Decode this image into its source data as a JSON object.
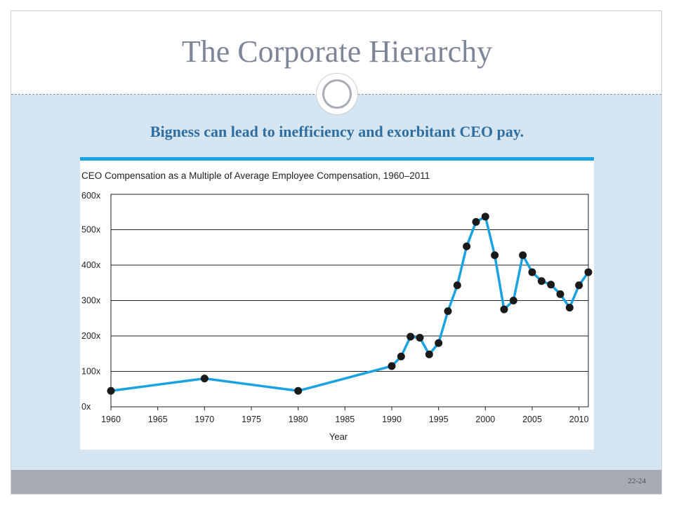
{
  "slide": {
    "title": "The Corporate Hierarchy",
    "subtitle": "Bigness can lead to inefficiency and exorbitant CEO pay.",
    "page_number": "22-24"
  },
  "colors": {
    "title": "#7f8599",
    "subtitle": "#2f6ea0",
    "content_bg": "#d5e5f1",
    "footer_bg": "#a9abb4",
    "series_line": "#1aa3e0",
    "marker": "#1a1a1a",
    "top_rule": "#1aa3e0"
  },
  "chart_data": {
    "type": "line",
    "title": "CEO Compensation as a Multiple of Average Employee Compensation, 1960–2011",
    "xlabel": "Year",
    "ylabel": "",
    "xlim": [
      1960,
      2011
    ],
    "ylim": [
      0,
      600
    ],
    "x_ticks": [
      1960,
      1965,
      1970,
      1975,
      1980,
      1985,
      1990,
      1995,
      2000,
      2005,
      2010
    ],
    "y_ticks": [
      {
        "value": 0,
        "label": "0x"
      },
      {
        "value": 100,
        "label": "100x"
      },
      {
        "value": 200,
        "label": "200x"
      },
      {
        "value": 300,
        "label": "300x"
      },
      {
        "value": 400,
        "label": "400x"
      },
      {
        "value": 500,
        "label": "500x"
      },
      {
        "value": 600,
        "label": "600x"
      }
    ],
    "grid": "horizontal",
    "series": [
      {
        "markers": true,
        "points": [
          {
            "x": 1960,
            "y": 45
          },
          {
            "x": 1970,
            "y": 80
          },
          {
            "x": 1980,
            "y": 45
          },
          {
            "x": 1990,
            "y": 115
          },
          {
            "x": 1991,
            "y": 142
          },
          {
            "x": 1992,
            "y": 198
          },
          {
            "x": 1993,
            "y": 195
          },
          {
            "x": 1994,
            "y": 148
          },
          {
            "x": 1995,
            "y": 180
          },
          {
            "x": 1996,
            "y": 270
          },
          {
            "x": 1997,
            "y": 343
          },
          {
            "x": 1998,
            "y": 453
          },
          {
            "x": 1999,
            "y": 522
          },
          {
            "x": 2000,
            "y": 537
          },
          {
            "x": 2001,
            "y": 428
          },
          {
            "x": 2002,
            "y": 275
          },
          {
            "x": 2003,
            "y": 300
          },
          {
            "x": 2004,
            "y": 428
          },
          {
            "x": 2005,
            "y": 380
          },
          {
            "x": 2006,
            "y": 355
          },
          {
            "x": 2007,
            "y": 345
          },
          {
            "x": 2008,
            "y": 318
          },
          {
            "x": 2009,
            "y": 280
          },
          {
            "x": 2010,
            "y": 343
          },
          {
            "x": 2011,
            "y": 380
          }
        ]
      }
    ]
  }
}
